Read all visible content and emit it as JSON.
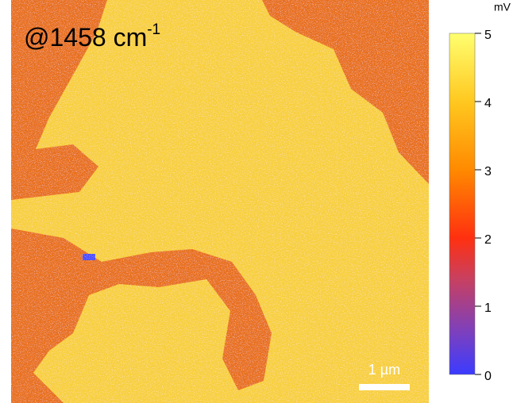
{
  "image": {
    "label": {
      "text": "@1458 cm",
      "superscript": "-1"
    },
    "scale_bar": "1 µm"
  },
  "colorbar": {
    "unit": "mV",
    "range": [
      0,
      5
    ],
    "ticks": [
      0,
      1,
      2,
      3,
      4,
      5
    ]
  }
}
